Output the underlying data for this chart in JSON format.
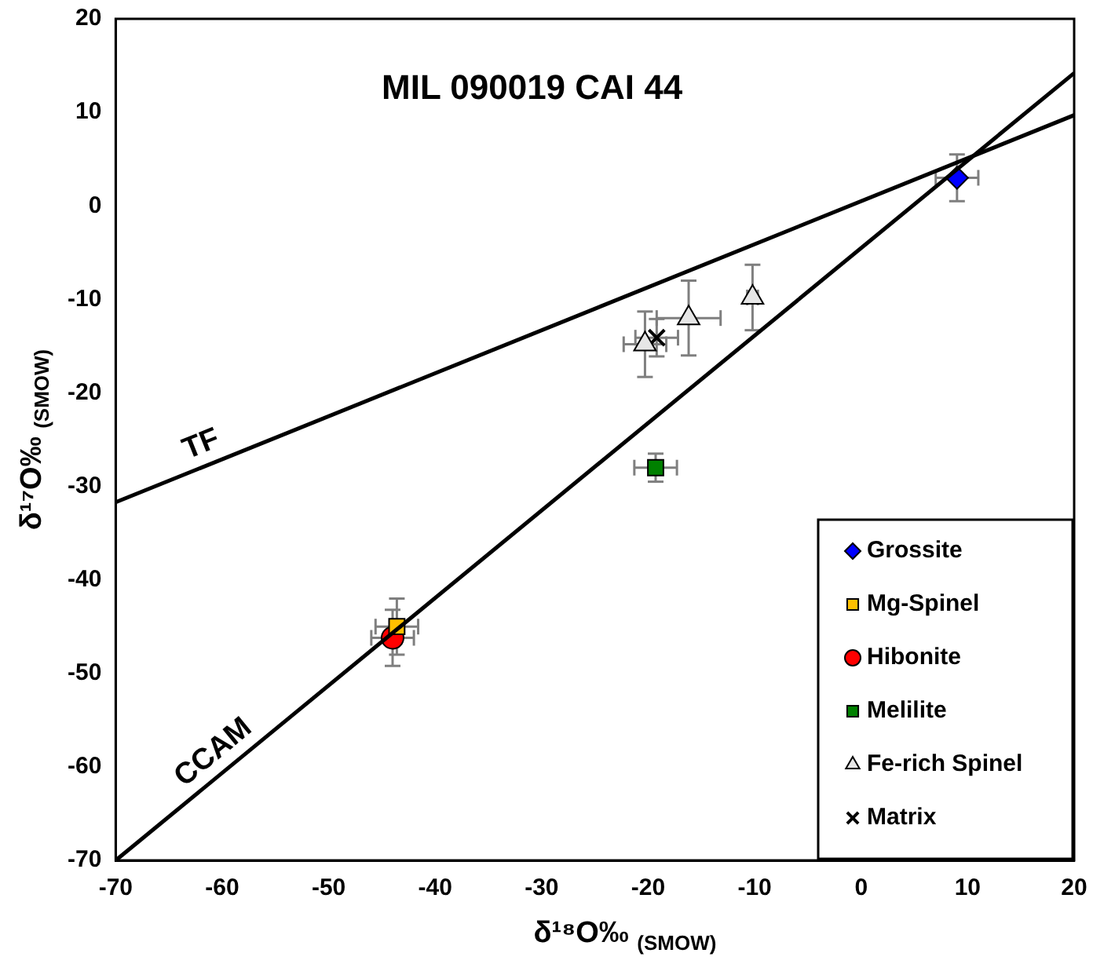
{
  "chart_data": {
    "type": "scatter",
    "title": "MIL 090019 CAI 44",
    "xlabel": "δ¹⁸O‰ $_{(SMOW)}$",
    "ylabel": "δ¹⁷O‰ $_{(SMOW)}$",
    "xlim": [
      -70,
      20
    ],
    "xticks": [
      -70,
      -60,
      -50,
      -40,
      -30,
      -20,
      -10,
      0,
      10,
      20
    ],
    "ylim": [
      -70,
      20
    ],
    "yticks": [
      -70,
      -60,
      -50,
      -40,
      -30,
      -20,
      -10,
      0,
      10,
      20
    ],
    "grid": false,
    "legend": "bottom right",
    "series": [
      {
        "type": "line",
        "name": "TF",
        "color": "#000000",
        "marker": "none",
        "x": [
          -70,
          20
        ],
        "values": [
          -31.7,
          9.7
        ]
      },
      {
        "type": "line",
        "name": "CCAM",
        "color": "#000000",
        "marker": "none",
        "x": [
          -70,
          20
        ],
        "values": [
          -70,
          14.2
        ]
      },
      {
        "name": "Grossite",
        "color": "#0000ff",
        "marker": "diamond",
        "x": [
          9
        ],
        "values": [
          3
        ],
        "errors": [
          2.5
        ],
        "xerrors": [
          2
        ]
      },
      {
        "name": "Mg-Spinel",
        "color": "#ffc000",
        "marker": "square",
        "x": [
          -43.6
        ],
        "values": [
          -45
        ],
        "errors": [
          3
        ],
        "xerrors": [
          2
        ]
      },
      {
        "name": "Hibonite",
        "color": "#ff0000",
        "marker": "circle",
        "x": [
          -44
        ],
        "values": [
          -46.2
        ],
        "errors": [
          3
        ],
        "xerrors": [
          2
        ]
      },
      {
        "name": "Melilite",
        "color": "#008000",
        "marker": "square",
        "x": [
          -19.3
        ],
        "values": [
          -28
        ],
        "errors": [
          1.5
        ],
        "xerrors": [
          2
        ]
      },
      {
        "name": "Fe-rich Spinel",
        "color": "#e6e6e6",
        "marker": "triangle",
        "x": [
          -20.3,
          -16.2,
          -10.2
        ],
        "values": [
          -14.8,
          -12,
          -9.8
        ],
        "errors": [
          3.5,
          4,
          3.5
        ],
        "xerrors": [
          2,
          3,
          0.5
        ]
      },
      {
        "name": "Matrix",
        "color": "#000000",
        "marker": "cross",
        "x": [
          -19.2
        ],
        "values": [
          -14.1
        ],
        "errors": [
          2
        ],
        "xerrors": [
          2
        ]
      }
    ]
  }
}
